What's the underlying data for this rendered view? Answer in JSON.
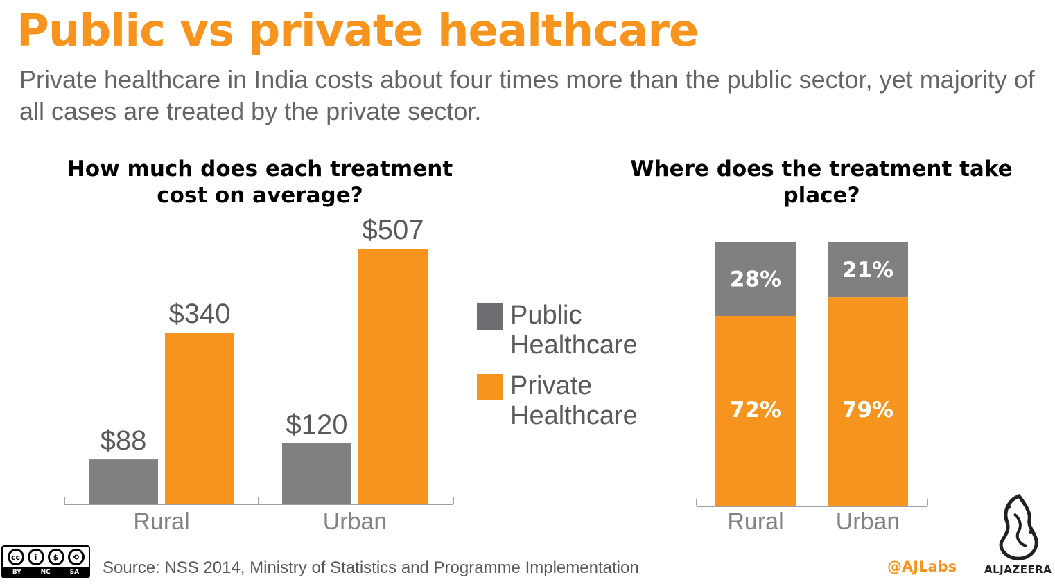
{
  "title": "Public vs private healthcare",
  "subtitle": "Private healthcare in India costs about four times more than the public sector, yet majority of all cases are treated by the private sector.",
  "colors": {
    "public": "#808080",
    "private": "#f7941d",
    "accent": "#f7941d",
    "text": "#58595b"
  },
  "legend": [
    {
      "label": "Public Healthcare",
      "color": "#6d6e71"
    },
    {
      "label": "Private Healthcare",
      "color": "#f7941d"
    }
  ],
  "chart_data": [
    {
      "type": "bar",
      "title": "How much does each treatment cost on average?",
      "categories": [
        "Rural",
        "Urban"
      ],
      "series": [
        {
          "name": "Public Healthcare",
          "values": [
            88,
            120
          ],
          "labels": [
            "$88",
            "$120"
          ]
        },
        {
          "name": "Private Healthcare",
          "values": [
            340,
            507
          ],
          "labels": [
            "$340",
            "$507"
          ]
        }
      ],
      "ylim": [
        0,
        507
      ],
      "xlabel": "",
      "ylabel": ""
    },
    {
      "type": "bar",
      "stacked": true,
      "title": "Where does the treatment take place?",
      "categories": [
        "Rural",
        "Urban"
      ],
      "series": [
        {
          "name": "Public Healthcare",
          "values": [
            28,
            21
          ],
          "labels": [
            "28%",
            "21%"
          ]
        },
        {
          "name": "Private Healthcare",
          "values": [
            72,
            79
          ],
          "labels": [
            "72%",
            "79%"
          ]
        }
      ],
      "ylim": [
        0,
        100
      ],
      "xlabel": "",
      "ylabel": ""
    }
  ],
  "source": "Source: NSS 2014, Ministry of Statistics and Programme Implementation",
  "license": {
    "symbols": [
      "cc",
      "i",
      "$",
      "⟲"
    ],
    "labels": [
      "BY",
      "NC",
      "SA"
    ]
  },
  "credit": "@AJLabs",
  "brand": "ALJAZEERA"
}
